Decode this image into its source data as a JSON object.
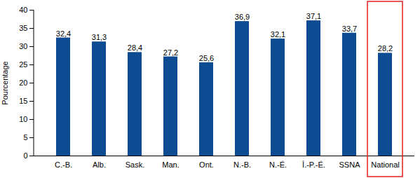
{
  "chart_data": {
    "type": "bar",
    "y_label": "Pourcentage",
    "categories": [
      "C.-B.",
      "Alb.",
      "Sask.",
      "Man.",
      "Ont.",
      "N.-B.",
      "N.-É.",
      "Î.-P.-É.",
      "SSNA",
      "National"
    ],
    "values": [
      32.4,
      31.3,
      28.4,
      27.2,
      25.6,
      36.9,
      32.1,
      37.1,
      33.7,
      28.2
    ],
    "value_labels": [
      "32,4",
      "31,3",
      "28,4",
      "27,2",
      "25,6",
      "36,9",
      "32,1",
      "37,1",
      "33,7",
      "28,2"
    ],
    "color": "#0d4c92",
    "ylim": [
      0,
      40
    ],
    "yticks": [
      0,
      5,
      10,
      15,
      20,
      25,
      30,
      35,
      40
    ],
    "grid": false,
    "data_labels": true
  }
}
